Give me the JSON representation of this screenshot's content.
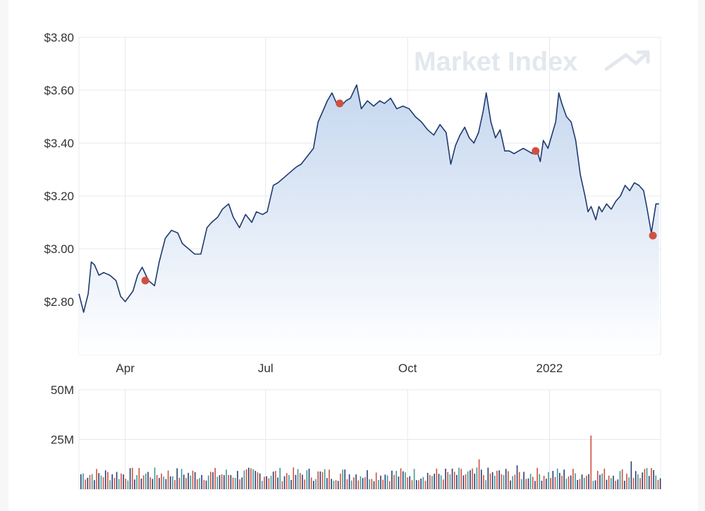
{
  "watermark": "Market Index",
  "colors": {
    "line": "#1f3a6e",
    "area_top": "#c5d7ef",
    "area_bottom": "#ffffff",
    "marker": "#d05040",
    "grid": "#e6e8ec",
    "axis_text": "#333333",
    "vol_navy": "#2b3f72",
    "vol_teal": "#3f9a94",
    "vol_red": "#d05040"
  },
  "chart_data": [
    {
      "type": "line",
      "y_tick_labels": [
        "$3.80",
        "$3.60",
        "$3.40",
        "$3.20",
        "$3.00",
        "$2.80"
      ],
      "y_ticks": [
        3.8,
        3.6,
        3.4,
        3.2,
        3.0,
        2.8
      ],
      "ylim": [
        2.6,
        3.8
      ],
      "x_tick_labels": [
        "Apr",
        "Jul",
        "Oct",
        "2022"
      ],
      "x_ticks": [
        "2021-04-01",
        "2021-07-01",
        "2021-10-01",
        "2022-01-01"
      ],
      "xlim": [
        "2021-03-02",
        "2022-03-14"
      ],
      "grid": true,
      "series": [
        {
          "values": [
            [
              "2021-03-02",
              2.83
            ],
            [
              "2021-03-05",
              2.76
            ],
            [
              "2021-03-08",
              2.83
            ],
            [
              "2021-03-10",
              2.95
            ],
            [
              "2021-03-12",
              2.94
            ],
            [
              "2021-03-15",
              2.9
            ],
            [
              "2021-03-18",
              2.91
            ],
            [
              "2021-03-22",
              2.9
            ],
            [
              "2021-03-26",
              2.88
            ],
            [
              "2021-03-29",
              2.82
            ],
            [
              "2021-04-01",
              2.8
            ],
            [
              "2021-04-06",
              2.84
            ],
            [
              "2021-04-09",
              2.9
            ],
            [
              "2021-04-12",
              2.93
            ],
            [
              "2021-04-16",
              2.88
            ],
            [
              "2021-04-20",
              2.86
            ],
            [
              "2021-04-23",
              2.95
            ],
            [
              "2021-04-27",
              3.04
            ],
            [
              "2021-05-01",
              3.07
            ],
            [
              "2021-05-05",
              3.06
            ],
            [
              "2021-05-08",
              3.02
            ],
            [
              "2021-05-12",
              3.0
            ],
            [
              "2021-05-16",
              2.98
            ],
            [
              "2021-05-20",
              2.98
            ],
            [
              "2021-05-24",
              3.08
            ],
            [
              "2021-05-27",
              3.1
            ],
            [
              "2021-05-31",
              3.12
            ],
            [
              "2021-06-03",
              3.15
            ],
            [
              "2021-06-07",
              3.17
            ],
            [
              "2021-06-10",
              3.12
            ],
            [
              "2021-06-14",
              3.08
            ],
            [
              "2021-06-18",
              3.13
            ],
            [
              "2021-06-22",
              3.1
            ],
            [
              "2021-06-25",
              3.14
            ],
            [
              "2021-06-29",
              3.13
            ],
            [
              "2021-07-02",
              3.14
            ],
            [
              "2021-07-06",
              3.24
            ],
            [
              "2021-07-09",
              3.25
            ],
            [
              "2021-07-13",
              3.27
            ],
            [
              "2021-07-17",
              3.29
            ],
            [
              "2021-07-21",
              3.31
            ],
            [
              "2021-07-24",
              3.32
            ],
            [
              "2021-07-28",
              3.35
            ],
            [
              "2021-08-01",
              3.38
            ],
            [
              "2021-08-04",
              3.48
            ],
            [
              "2021-08-07",
              3.52
            ],
            [
              "2021-08-10",
              3.56
            ],
            [
              "2021-08-13",
              3.59
            ],
            [
              "2021-08-16",
              3.55
            ],
            [
              "2021-08-19",
              3.54
            ],
            [
              "2021-08-22",
              3.56
            ],
            [
              "2021-08-25",
              3.57
            ],
            [
              "2021-08-29",
              3.62
            ],
            [
              "2021-09-01",
              3.53
            ],
            [
              "2021-09-05",
              3.56
            ],
            [
              "2021-09-09",
              3.54
            ],
            [
              "2021-09-13",
              3.56
            ],
            [
              "2021-09-16",
              3.55
            ],
            [
              "2021-09-20",
              3.57
            ],
            [
              "2021-09-24",
              3.53
            ],
            [
              "2021-09-28",
              3.54
            ],
            [
              "2021-10-02",
              3.53
            ],
            [
              "2021-10-06",
              3.5
            ],
            [
              "2021-10-10",
              3.48
            ],
            [
              "2021-10-14",
              3.45
            ],
            [
              "2021-10-18",
              3.43
            ],
            [
              "2021-10-22",
              3.47
            ],
            [
              "2021-10-26",
              3.44
            ],
            [
              "2021-10-29",
              3.32
            ],
            [
              "2021-11-01",
              3.39
            ],
            [
              "2021-11-04",
              3.43
            ],
            [
              "2021-11-07",
              3.46
            ],
            [
              "2021-11-10",
              3.42
            ],
            [
              "2021-11-13",
              3.4
            ],
            [
              "2021-11-16",
              3.44
            ],
            [
              "2021-11-19",
              3.52
            ],
            [
              "2021-11-21",
              3.59
            ],
            [
              "2021-11-24",
              3.48
            ],
            [
              "2021-11-27",
              3.42
            ],
            [
              "2021-11-30",
              3.45
            ],
            [
              "2021-12-03",
              3.37
            ],
            [
              "2021-12-06",
              3.37
            ],
            [
              "2021-12-09",
              3.36
            ],
            [
              "2021-12-12",
              3.37
            ],
            [
              "2021-12-15",
              3.38
            ],
            [
              "2021-12-18",
              3.37
            ],
            [
              "2021-12-21",
              3.36
            ],
            [
              "2021-12-24",
              3.37
            ],
            [
              "2021-12-26",
              3.33
            ],
            [
              "2021-12-28",
              3.41
            ],
            [
              "2021-12-31",
              3.38
            ],
            [
              "2022-01-02",
              3.42
            ],
            [
              "2022-01-05",
              3.48
            ],
            [
              "2022-01-07",
              3.59
            ],
            [
              "2022-01-09",
              3.55
            ],
            [
              "2022-01-12",
              3.5
            ],
            [
              "2022-01-15",
              3.48
            ],
            [
              "2022-01-18",
              3.41
            ],
            [
              "2022-01-21",
              3.28
            ],
            [
              "2022-01-24",
              3.2
            ],
            [
              "2022-01-26",
              3.14
            ],
            [
              "2022-01-28",
              3.16
            ],
            [
              "2022-01-31",
              3.11
            ],
            [
              "2022-02-02",
              3.16
            ],
            [
              "2022-02-04",
              3.14
            ],
            [
              "2022-02-07",
              3.17
            ],
            [
              "2022-02-10",
              3.15
            ],
            [
              "2022-02-13",
              3.18
            ],
            [
              "2022-02-16",
              3.2
            ],
            [
              "2022-02-19",
              3.24
            ],
            [
              "2022-02-22",
              3.22
            ],
            [
              "2022-02-25",
              3.25
            ],
            [
              "2022-02-28",
              3.24
            ],
            [
              "2022-03-03",
              3.22
            ],
            [
              "2022-03-05",
              3.16
            ],
            [
              "2022-03-08",
              3.06
            ],
            [
              "2022-03-11",
              3.17
            ],
            [
              "2022-03-13",
              3.17
            ]
          ]
        }
      ],
      "markers": [
        [
          "2021-04-14",
          2.88
        ],
        [
          "2021-08-18",
          3.55
        ],
        [
          "2021-12-23",
          3.37
        ],
        [
          "2022-03-09",
          3.05
        ]
      ]
    },
    {
      "type": "bar",
      "y_tick_labels": [
        "50M",
        "25M"
      ],
      "y_ticks": [
        50,
        25
      ],
      "ylim": [
        0,
        50
      ],
      "unit": "M",
      "bar_count": 260,
      "bar_color_cycle": [
        "navy",
        "teal",
        "red",
        "navy",
        "red",
        "teal",
        "navy",
        "red"
      ],
      "volume_base_range_m": [
        4,
        11
      ],
      "volume_highlights": [
        [
          "2021-11-16",
          15
        ],
        [
          "2021-12-11",
          12
        ],
        [
          "2022-01-28",
          27
        ],
        [
          "2022-02-23",
          14
        ]
      ]
    }
  ]
}
